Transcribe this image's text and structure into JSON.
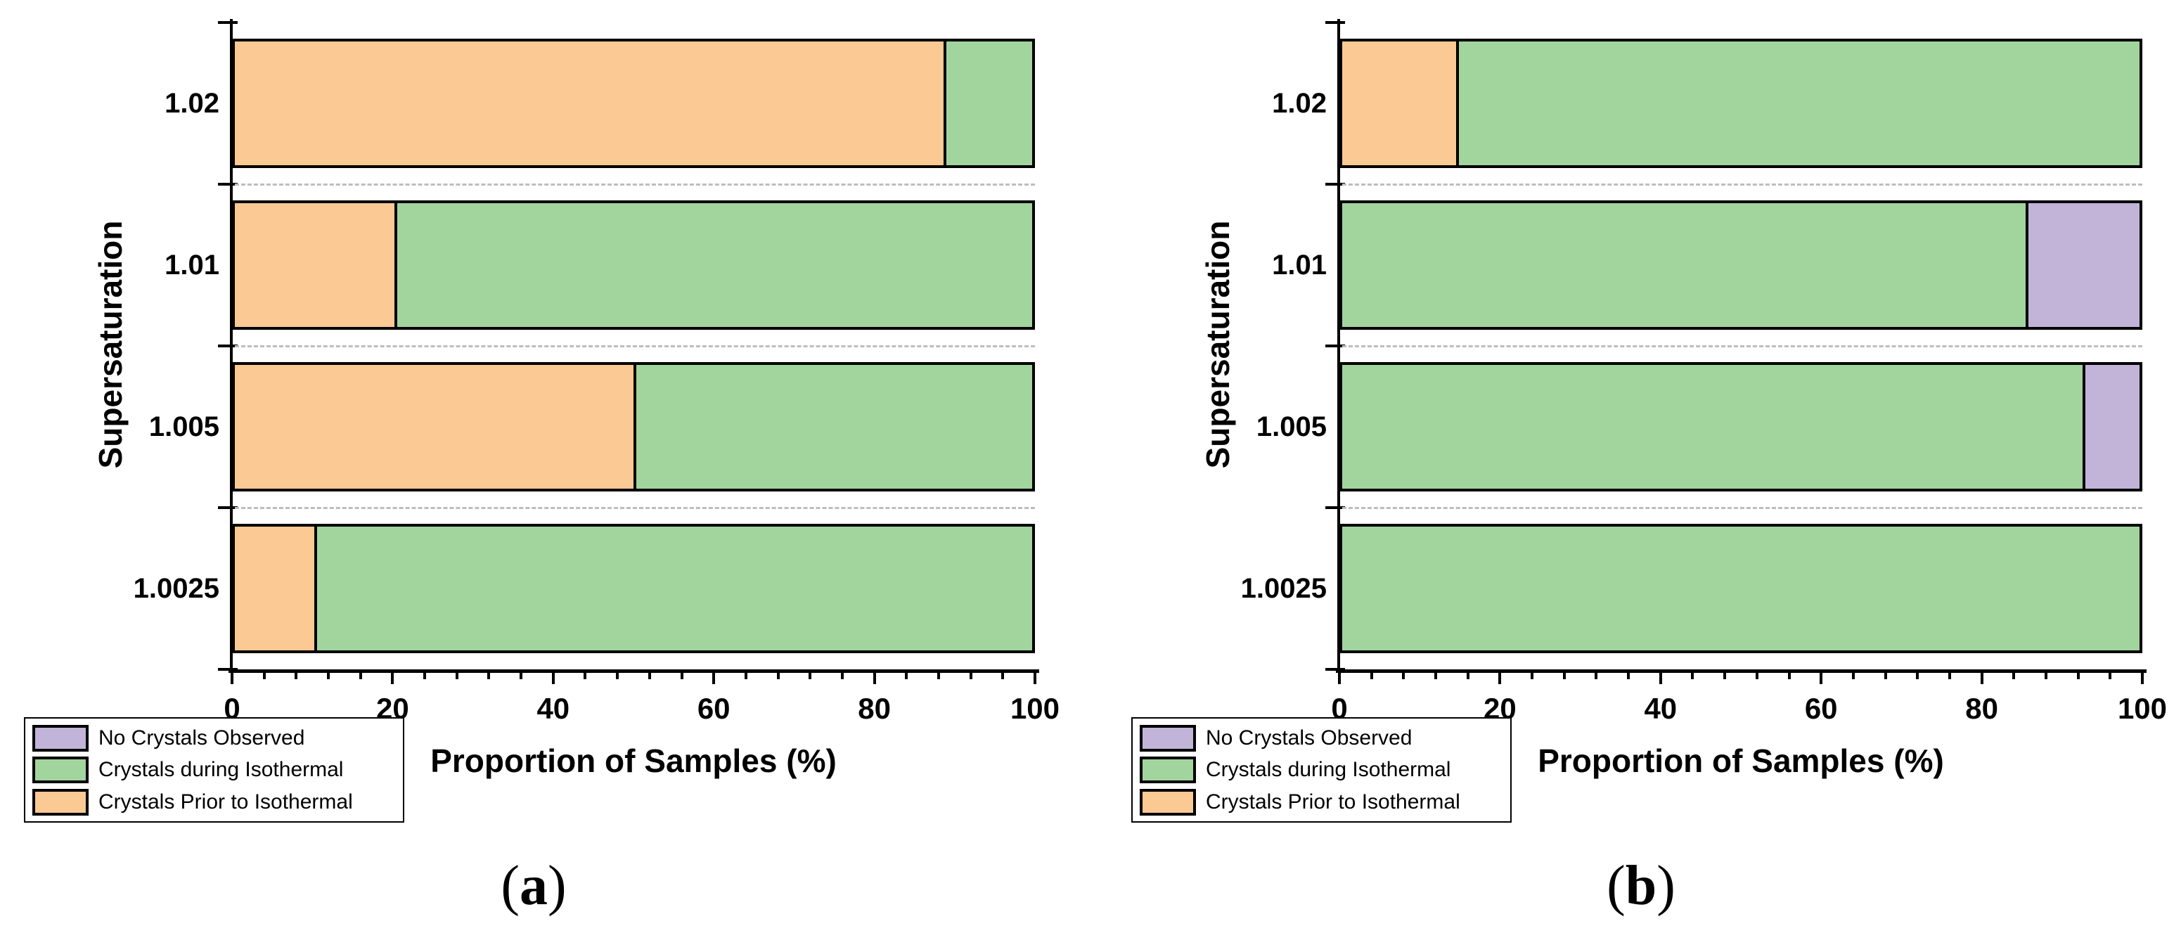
{
  "chart_data": [
    {
      "type": "bar",
      "subtype": "stacked-horizontal",
      "caption": {
        "open": "(",
        "letter": "a",
        "close": ")"
      },
      "xlabel": "Proportion of Samples (%)",
      "ylabel": "Supersaturation",
      "xlim": [
        0,
        100
      ],
      "x_major_ticks": [
        0,
        20,
        40,
        60,
        80,
        100
      ],
      "x_minor_step": 4,
      "grid": "dashed-horizontal-between-categories",
      "categories": [
        "1.02",
        "1.01",
        "1.005",
        "1.0025"
      ],
      "series": [
        {
          "name": "Crystals Prior to Isothermal",
          "color": "#FBC993",
          "values": [
            88.9,
            20,
            50,
            10
          ]
        },
        {
          "name": "Crystals during Isothermal",
          "color": "#A1D59D",
          "values": [
            11.1,
            80,
            50,
            90
          ]
        },
        {
          "name": "No Crystals Observed",
          "color": "#C2B4D8",
          "values": [
            0,
            0,
            0,
            0
          ]
        }
      ],
      "legend": {
        "position": "bottom-left",
        "items": [
          {
            "label": "No Crystals Observed",
            "color": "#C2B4D8"
          },
          {
            "label": "Crystals during Isothermal",
            "color": "#A1D59D"
          },
          {
            "label": "Crystals Prior to Isothermal",
            "color": "#FBC993"
          }
        ]
      }
    },
    {
      "type": "bar",
      "subtype": "stacked-horizontal",
      "caption": {
        "open": "(",
        "letter": "b",
        "close": ")"
      },
      "xlabel": "Proportion of Samples (%)",
      "ylabel": "Supersaturation",
      "xlim": [
        0,
        100
      ],
      "x_major_ticks": [
        0,
        20,
        40,
        60,
        80,
        100
      ],
      "x_minor_step": 4,
      "grid": "dashed-horizontal-between-categories",
      "categories": [
        "1.02",
        "1.01",
        "1.005",
        "1.0025"
      ],
      "series": [
        {
          "name": "Crystals Prior to Isothermal",
          "color": "#FBC993",
          "values": [
            14.3,
            0,
            0,
            0
          ]
        },
        {
          "name": "Crystals during Isothermal",
          "color": "#A1D59D",
          "values": [
            85.7,
            85.7,
            92.9,
            100
          ]
        },
        {
          "name": "No Crystals Observed",
          "color": "#C2B4D8",
          "values": [
            0,
            14.3,
            7.1,
            0
          ]
        }
      ],
      "legend": {
        "position": "bottom-left",
        "items": [
          {
            "label": "No Crystals Observed",
            "color": "#C2B4D8"
          },
          {
            "label": "Crystals during Isothermal",
            "color": "#A1D59D"
          },
          {
            "label": "Crystals Prior to Isothermal",
            "color": "#FBC993"
          }
        ]
      }
    }
  ]
}
